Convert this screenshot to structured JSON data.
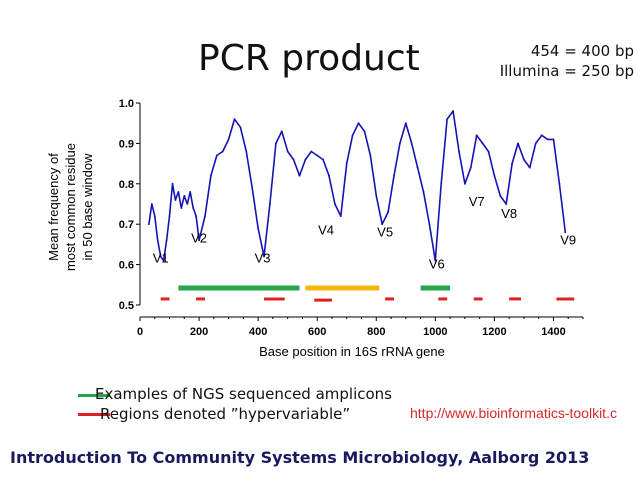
{
  "slide": {
    "title": "PCR product",
    "note_454": "454 = 400 bp",
    "note_illumina": "Illumina = 250 bp",
    "legend_green": "Examples of  NGS sequenced amplicons",
    "legend_red": "Regions denoted ”hypervariable”",
    "source": "http://www.bioinformatics-toolkit.c",
    "footer": "Introduction To Community Systems Microbiology, Aalborg 2013",
    "colors": {
      "line": "#1414b4",
      "green": "#22a84a",
      "orange": "#f5b50a",
      "red": "#e02020",
      "footer": "#1a1a5e"
    }
  },
  "chart_data": {
    "type": "line",
    "xlabel": "Base position in 16S rRNA gene",
    "ylabel_lines": [
      "Mean frequency of",
      "most common residue",
      "in 50 base window"
    ],
    "xlim": [
      0,
      1500
    ],
    "ylim": [
      0.5,
      1.0
    ],
    "x_ticks": [
      0,
      200,
      400,
      600,
      800,
      1000,
      1200,
      1400
    ],
    "y_ticks": [
      0.5,
      0.6,
      0.7,
      0.8,
      0.9,
      1.0
    ],
    "y_tick_labels": [
      "0.5",
      "0.6",
      "0.7",
      "0.8",
      "0.9",
      "1.0"
    ],
    "series": [
      {
        "x": [
          30,
          40,
          50,
          60,
          70,
          80,
          90,
          100,
          110,
          120,
          130,
          140,
          150,
          160,
          170,
          180,
          190,
          200,
          220,
          240,
          260,
          280,
          300,
          320,
          340,
          360,
          380,
          400,
          420,
          440,
          460,
          480,
          500,
          520,
          540,
          560,
          580,
          600,
          620,
          640,
          660,
          680,
          700,
          720,
          740,
          760,
          780,
          800,
          820,
          840,
          860,
          880,
          900,
          920,
          940,
          960,
          980,
          1000,
          1020,
          1040,
          1060,
          1080,
          1100,
          1120,
          1140,
          1160,
          1180,
          1200,
          1220,
          1240,
          1260,
          1280,
          1300,
          1320,
          1340,
          1360,
          1380,
          1400,
          1420,
          1440
        ],
        "y": [
          0.7,
          0.75,
          0.72,
          0.66,
          0.62,
          0.61,
          0.66,
          0.72,
          0.8,
          0.76,
          0.78,
          0.74,
          0.77,
          0.75,
          0.78,
          0.74,
          0.72,
          0.66,
          0.72,
          0.82,
          0.87,
          0.88,
          0.91,
          0.96,
          0.94,
          0.88,
          0.79,
          0.69,
          0.62,
          0.75,
          0.9,
          0.93,
          0.88,
          0.86,
          0.82,
          0.86,
          0.88,
          0.87,
          0.86,
          0.82,
          0.75,
          0.72,
          0.85,
          0.92,
          0.95,
          0.93,
          0.87,
          0.77,
          0.7,
          0.73,
          0.82,
          0.9,
          0.95,
          0.9,
          0.84,
          0.78,
          0.7,
          0.61,
          0.8,
          0.96,
          0.98,
          0.88,
          0.8,
          0.84,
          0.92,
          0.9,
          0.88,
          0.82,
          0.77,
          0.75,
          0.85,
          0.9,
          0.86,
          0.84,
          0.9,
          0.92,
          0.91,
          0.91,
          0.8,
          0.68
        ]
      }
    ],
    "region_labels": [
      {
        "text": "V1",
        "x": 70,
        "y": 0.605
      },
      {
        "text": "V2",
        "x": 200,
        "y": 0.655
      },
      {
        "text": "V3",
        "x": 415,
        "y": 0.605
      },
      {
        "text": "V4",
        "x": 630,
        "y": 0.675
      },
      {
        "text": "V5",
        "x": 830,
        "y": 0.67
      },
      {
        "text": "V6",
        "x": 1005,
        "y": 0.59
      },
      {
        "text": "V7",
        "x": 1140,
        "y": 0.745
      },
      {
        "text": "V8",
        "x": 1250,
        "y": 0.715
      },
      {
        "text": "V9",
        "x": 1450,
        "y": 0.65
      }
    ],
    "amplicons": [
      {
        "x0": 130,
        "x1": 540,
        "y": 0.542,
        "color": "green"
      },
      {
        "x0": 560,
        "x1": 810,
        "y": 0.542,
        "color": "orange"
      },
      {
        "x0": 950,
        "x1": 1050,
        "y": 0.542,
        "color": "green"
      }
    ],
    "hypervariable_regions": [
      {
        "x0": 70,
        "x1": 100,
        "y": 0.515
      },
      {
        "x0": 190,
        "x1": 220,
        "y": 0.515
      },
      {
        "x0": 420,
        "x1": 490,
        "y": 0.515
      },
      {
        "x0": 590,
        "x1": 650,
        "y": 0.512
      },
      {
        "x0": 830,
        "x1": 860,
        "y": 0.515
      },
      {
        "x0": 1010,
        "x1": 1040,
        "y": 0.515
      },
      {
        "x0": 1130,
        "x1": 1160,
        "y": 0.515
      },
      {
        "x0": 1250,
        "x1": 1290,
        "y": 0.515
      },
      {
        "x0": 1410,
        "x1": 1470,
        "y": 0.515
      }
    ]
  }
}
